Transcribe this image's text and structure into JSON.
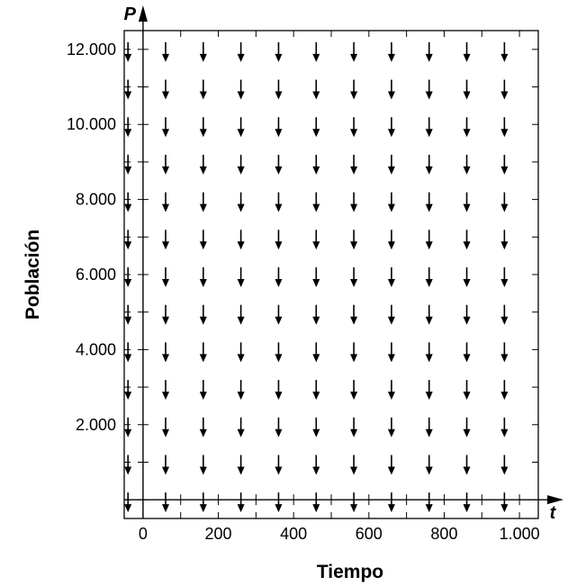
{
  "chart_data": {
    "type": "direction-field",
    "xlabel": "Tiempo",
    "ylabel": "Población",
    "x_axis_variable": "t",
    "y_axis_variable": "P",
    "xlim": [
      -50,
      1050
    ],
    "ylim": [
      -500,
      12500
    ],
    "x_ticks": [
      0,
      200,
      400,
      600,
      800,
      1000
    ],
    "x_tick_labels": [
      "0",
      "200",
      "400",
      "600",
      "800",
      "1.000"
    ],
    "y_ticks": [
      2000,
      4000,
      6000,
      8000,
      10000,
      12000
    ],
    "y_tick_labels": [
      "2.000",
      "4.000",
      "6.000",
      "8.000",
      "10.000",
      "12.000"
    ],
    "field_columns_t": [
      -40,
      60,
      160,
      260,
      360,
      460,
      560,
      660,
      760,
      860,
      960
    ],
    "field_rows_P": [
      12000,
      11000,
      10000,
      9000,
      8000,
      7000,
      6000,
      5000,
      4000,
      3000,
      2000,
      1000,
      0
    ],
    "arrow_direction": "down",
    "grid": false
  }
}
